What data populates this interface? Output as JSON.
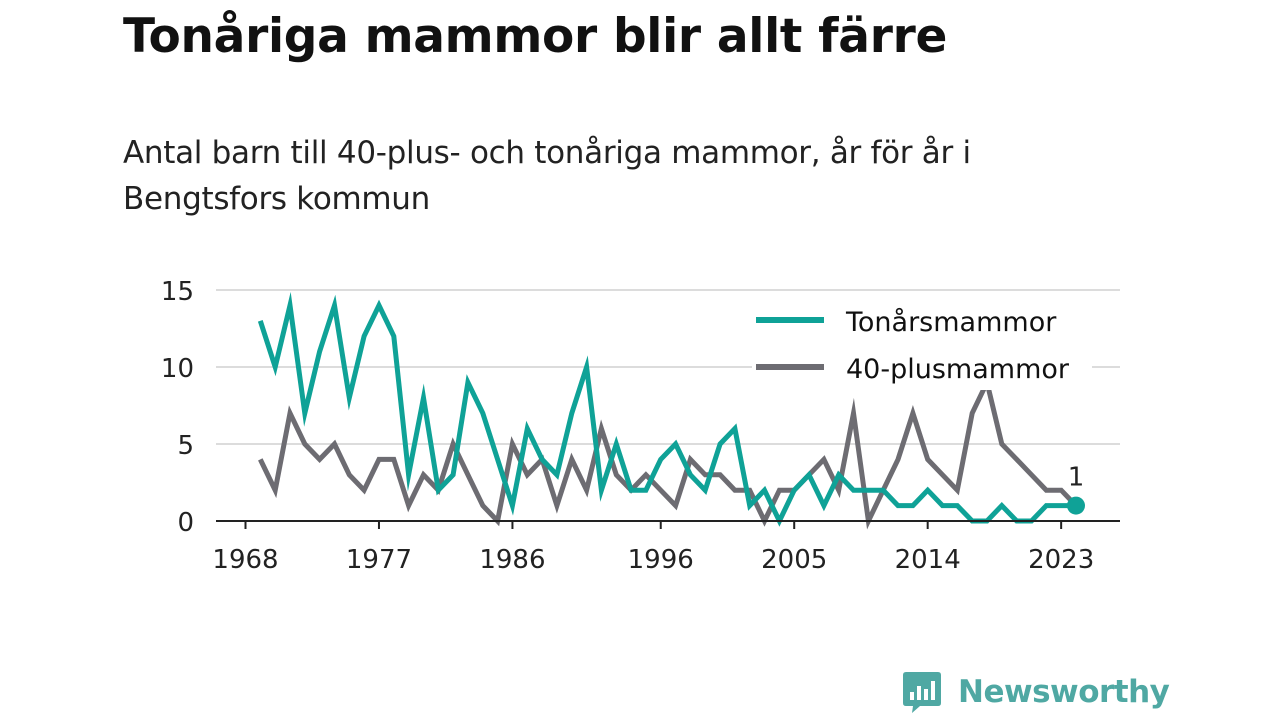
{
  "title": "Tonåriga mammor blir allt färre",
  "subtitle": "Antal barn till 40-plus- och tonåriga mammor, år för år i Bengtsfors kommun",
  "brand": {
    "name": "Newsworthy",
    "icon": "bar-chart-speech-bubble-icon",
    "color": "#4fa8a3"
  },
  "chart_data": {
    "type": "line",
    "x": [
      1969,
      1970,
      1971,
      1972,
      1973,
      1974,
      1975,
      1976,
      1977,
      1978,
      1979,
      1980,
      1981,
      1982,
      1983,
      1984,
      1985,
      1986,
      1987,
      1988,
      1989,
      1990,
      1991,
      1992,
      1993,
      1994,
      1995,
      1996,
      1997,
      1998,
      1999,
      2000,
      2001,
      2002,
      2003,
      2004,
      2005,
      2006,
      2007,
      2008,
      2009,
      2010,
      2011,
      2012,
      2013,
      2014,
      2015,
      2016,
      2017,
      2018,
      2019,
      2020,
      2021,
      2022,
      2023,
      2024
    ],
    "series": [
      {
        "name": "Tonårsmammor",
        "color": "#0fa297",
        "values": [
          13,
          10,
          14,
          7,
          11,
          14,
          8,
          12,
          14,
          12,
          3,
          8,
          2,
          3,
          9,
          7,
          4,
          1,
          6,
          4,
          3,
          7,
          10,
          2,
          5,
          2,
          2,
          4,
          5,
          3,
          2,
          5,
          6,
          1,
          2,
          0,
          2,
          3,
          1,
          3,
          2,
          2,
          2,
          1,
          1,
          2,
          1,
          1,
          0,
          0,
          1,
          0,
          0,
          1,
          1,
          1
        ]
      },
      {
        "name": "40-plusmammor",
        "color": "#6d6c72",
        "values": [
          4,
          2,
          7,
          5,
          4,
          5,
          3,
          2,
          4,
          4,
          1,
          3,
          2,
          5,
          3,
          1,
          0,
          5,
          3,
          4,
          1,
          4,
          2,
          6,
          3,
          2,
          3,
          2,
          1,
          4,
          3,
          3,
          2,
          2,
          0,
          2,
          2,
          3,
          4,
          2,
          7,
          0,
          2,
          4,
          7,
          4,
          3,
          2,
          7,
          9,
          5,
          4,
          3,
          2,
          2,
          1
        ]
      }
    ],
    "xticks": [
      "1968",
      "1977",
      "1986",
      "1996",
      "2005",
      "2014",
      "2023"
    ],
    "yticks": [
      "0",
      "5",
      "10",
      "15"
    ],
    "ylim": [
      0,
      15
    ],
    "xlim": [
      1968,
      2024
    ],
    "grid": true,
    "legend": "top-right",
    "end_label": "1",
    "xlabel": "",
    "ylabel": ""
  }
}
